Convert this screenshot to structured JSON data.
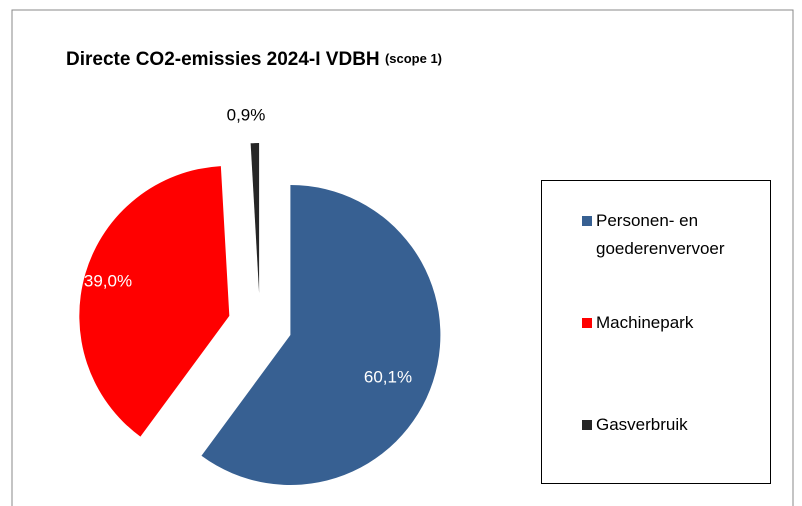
{
  "chart_data": {
    "type": "pie",
    "title": "Directe CO2-emissies 2024-I VDBH",
    "subtitle": "(scope 1)",
    "categories": [
      "Personen- en goederenvervoer",
      "Machinepark",
      "Gasverbruik"
    ],
    "values": [
      60.1,
      39.0,
      0.9
    ],
    "value_labels": [
      "60,1%",
      "39,0%",
      "0,9%"
    ],
    "colors": [
      "#376092",
      "#ff0000",
      "#262626"
    ],
    "legend": "right"
  }
}
